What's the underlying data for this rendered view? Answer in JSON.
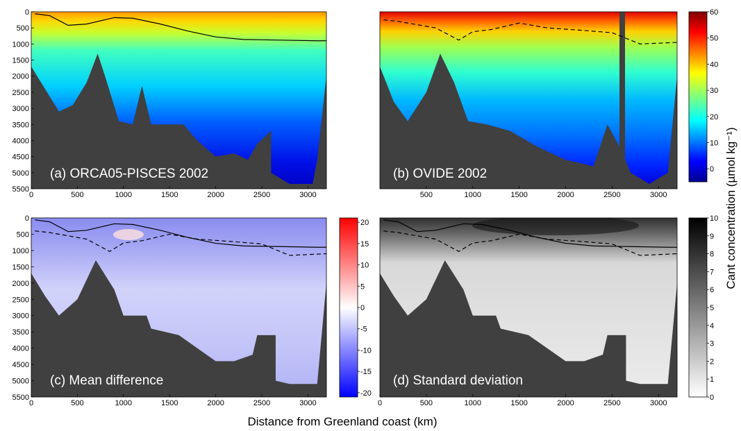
{
  "chart_data": [
    {
      "type": "heatmap",
      "title": "(a) ORCA05-PISCES 2002",
      "x_range": [
        0,
        3200
      ],
      "y_range": [
        0,
        5500
      ],
      "y_inverted": true,
      "x_ticks": [
        "0",
        "500",
        "1000",
        "1500",
        "2000",
        "2500",
        "3000"
      ],
      "y_ticks": [
        "0",
        "500",
        "1000",
        "1500",
        "2000",
        "2500",
        "3000",
        "3500",
        "4000",
        "4500",
        "5000",
        "5500"
      ],
      "colorscale": "jet",
      "clim": [
        -5,
        60
      ],
      "isoline_solid": [
        [
          40,
          60
        ],
        [
          200,
          120
        ],
        [
          400,
          420
        ],
        [
          600,
          380
        ],
        [
          900,
          180
        ],
        [
          1100,
          200
        ],
        [
          1400,
          380
        ],
        [
          1700,
          600
        ],
        [
          2000,
          780
        ],
        [
          2300,
          860
        ],
        [
          2700,
          880
        ],
        [
          3100,
          900
        ],
        [
          3200,
          900
        ]
      ],
      "bathymetry": [
        [
          0,
          1700
        ],
        [
          150,
          2400
        ],
        [
          300,
          3100
        ],
        [
          450,
          2900
        ],
        [
          600,
          2200
        ],
        [
          720,
          1300
        ],
        [
          800,
          2000
        ],
        [
          950,
          3400
        ],
        [
          1100,
          3500
        ],
        [
          1200,
          2300
        ],
        [
          1300,
          3500
        ],
        [
          1650,
          3500
        ],
        [
          1800,
          4000
        ],
        [
          2000,
          4500
        ],
        [
          2200,
          4400
        ],
        [
          2350,
          4600
        ],
        [
          2450,
          4100
        ],
        [
          2600,
          3700
        ],
        [
          2600,
          5000
        ],
        [
          2800,
          5350
        ],
        [
          3050,
          5350
        ],
        [
          3100,
          4600
        ],
        [
          3200,
          2000
        ]
      ]
    },
    {
      "type": "heatmap",
      "title": "(b) OVIDE 2002",
      "x_range": [
        0,
        3200
      ],
      "y_range": [
        0,
        5500
      ],
      "y_inverted": true,
      "x_ticks": [
        "500",
        "1000",
        "1500",
        "2000",
        "2500",
        "3000"
      ],
      "colorscale": "jet",
      "clim": [
        -5,
        60
      ],
      "isoline_dashed": [
        [
          40,
          250
        ],
        [
          200,
          300
        ],
        [
          400,
          400
        ],
        [
          600,
          500
        ],
        [
          850,
          880
        ],
        [
          1000,
          620
        ],
        [
          1200,
          550
        ],
        [
          1500,
          350
        ],
        [
          1800,
          500
        ],
        [
          2200,
          580
        ],
        [
          2500,
          650
        ],
        [
          2800,
          1000
        ],
        [
          3200,
          950
        ]
      ],
      "bathymetry": [
        [
          0,
          1700
        ],
        [
          150,
          2800
        ],
        [
          300,
          3400
        ],
        [
          500,
          2500
        ],
        [
          650,
          1300
        ],
        [
          800,
          2200
        ],
        [
          950,
          3400
        ],
        [
          1150,
          3500
        ],
        [
          1400,
          3700
        ],
        [
          1700,
          4200
        ],
        [
          2000,
          4600
        ],
        [
          2300,
          4800
        ],
        [
          2450,
          3500
        ],
        [
          2600,
          4300
        ],
        [
          2700,
          5000
        ],
        [
          2900,
          5350
        ],
        [
          3100,
          5000
        ],
        [
          3200,
          2000
        ]
      ]
    },
    {
      "type": "heatmap",
      "title": "(c) Mean difference",
      "x_range": [
        0,
        3200
      ],
      "y_range": [
        0,
        5500
      ],
      "y_inverted": true,
      "x_ticks": [
        "0",
        "500",
        "1000",
        "1500",
        "2000",
        "2500",
        "3000"
      ],
      "y_ticks": [
        "0",
        "500",
        "1000",
        "1500",
        "2000",
        "2500",
        "3000",
        "3500",
        "4000",
        "4500",
        "5000",
        "5500"
      ],
      "colorscale": "bwr",
      "clim": [
        -21,
        21
      ],
      "colorbar_ticks": [
        "20",
        "15",
        "10",
        "5",
        "0",
        "-5",
        "-10",
        "-15",
        "-20"
      ],
      "bathymetry": [
        [
          0,
          1700
        ],
        [
          150,
          2400
        ],
        [
          300,
          3000
        ],
        [
          500,
          2500
        ],
        [
          700,
          1300
        ],
        [
          900,
          2200
        ],
        [
          1000,
          3000
        ],
        [
          1250,
          3000
        ],
        [
          1300,
          3400
        ],
        [
          1600,
          3600
        ],
        [
          1800,
          4000
        ],
        [
          2000,
          4400
        ],
        [
          2200,
          4400
        ],
        [
          2400,
          4200
        ],
        [
          2450,
          3600
        ],
        [
          2650,
          3600
        ],
        [
          2650,
          5000
        ],
        [
          2800,
          5100
        ],
        [
          3100,
          5100
        ],
        [
          3200,
          2000
        ]
      ]
    },
    {
      "type": "heatmap",
      "title": "(d) Standard deviation",
      "x_range": [
        0,
        3200
      ],
      "y_range": [
        0,
        5500
      ],
      "y_inverted": true,
      "x_ticks": [
        "0",
        "500",
        "1000",
        "1500",
        "2000",
        "2500",
        "3000"
      ],
      "colorscale": "gray_r",
      "clim": [
        0,
        10
      ],
      "colorbar_ticks": [
        "10",
        "9",
        "8",
        "7",
        "6",
        "5",
        "4",
        "3",
        "2",
        "1",
        "0"
      ],
      "bathymetry": [
        [
          0,
          1700
        ],
        [
          150,
          2400
        ],
        [
          300,
          3000
        ],
        [
          500,
          2500
        ],
        [
          700,
          1300
        ],
        [
          900,
          2200
        ],
        [
          1000,
          3000
        ],
        [
          1250,
          3000
        ],
        [
          1300,
          3400
        ],
        [
          1600,
          3600
        ],
        [
          1800,
          4000
        ],
        [
          2000,
          4400
        ],
        [
          2200,
          4400
        ],
        [
          2400,
          4200
        ],
        [
          2450,
          3600
        ],
        [
          2650,
          3600
        ],
        [
          2650,
          5000
        ],
        [
          2800,
          5100
        ],
        [
          3100,
          5100
        ],
        [
          3200,
          2000
        ]
      ]
    }
  ],
  "colorbar_top_ticks": [
    "60",
    "50",
    "40",
    "30",
    "20",
    "10",
    "0"
  ],
  "shared_ylabel": "Cant concentration (µmol kg⁻¹)",
  "shared_xlabel": "Distance from Greenland coast (km)"
}
